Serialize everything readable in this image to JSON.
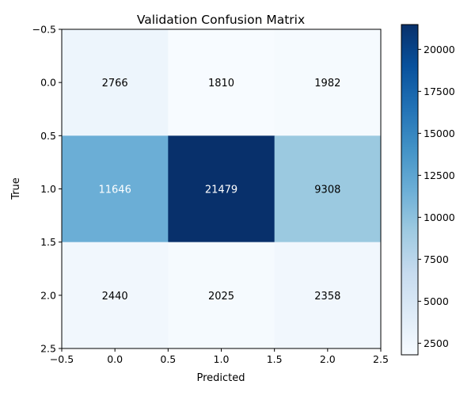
{
  "chart_data": {
    "type": "heatmap",
    "title": "Validation Confusion Matrix",
    "xlabel": "Predicted",
    "ylabel": "True",
    "xlim": [
      -0.5,
      2.5
    ],
    "ylim": [
      2.5,
      -0.5
    ],
    "x_ticks": [
      "−0.5",
      "0.0",
      "0.5",
      "1.0",
      "1.5",
      "2.0",
      "2.5"
    ],
    "y_ticks": [
      "−0.5",
      "0.0",
      "0.5",
      "1.0",
      "1.5",
      "2.0",
      "2.5"
    ],
    "matrix": [
      [
        2766,
        1810,
        1982
      ],
      [
        11646,
        21479,
        9308
      ],
      [
        2440,
        2025,
        2358
      ]
    ],
    "colormap": "Blues",
    "colorbar": {
      "min": 1810,
      "max": 21479,
      "ticks": [
        "2500",
        "5000",
        "7500",
        "10000",
        "12500",
        "15000",
        "17500",
        "20000"
      ]
    },
    "grid": false,
    "light_text_color": "#ffffff",
    "dark_text_color": "#000000"
  }
}
